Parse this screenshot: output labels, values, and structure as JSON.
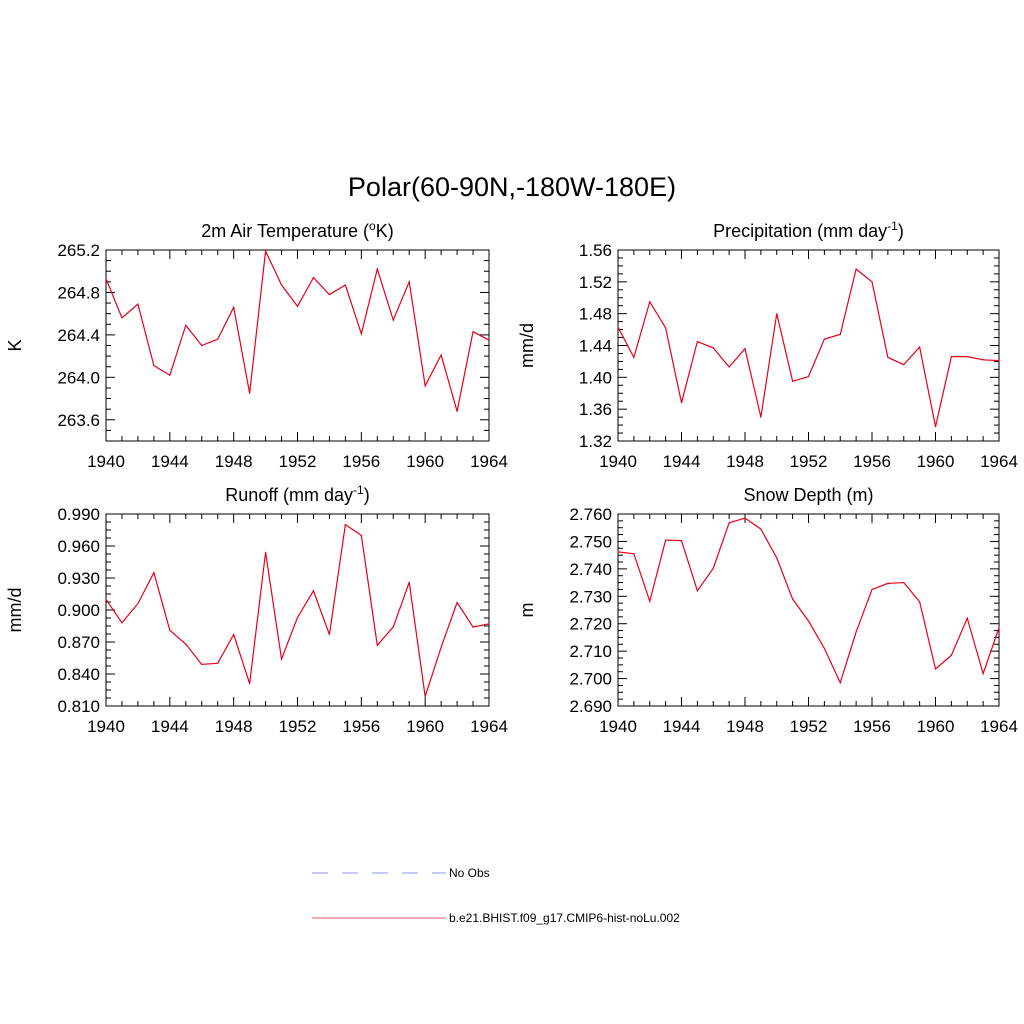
{
  "figure": {
    "title": "Polar(60-90N,-180W-180E)"
  },
  "chart_data": [
    {
      "type": "line",
      "title": "2m Air Temperature (",
      "title_sup": "o",
      "title_tail": "K)",
      "ylabel": "K",
      "xlim": [
        1940,
        1964
      ],
      "ylim": [
        263.4,
        265.2
      ],
      "xticks": [
        1940,
        1944,
        1948,
        1952,
        1956,
        1960,
        1964
      ],
      "yticks": [
        "263.6",
        "264.0",
        "264.4",
        "264.8",
        "265.2"
      ],
      "color": "#e8001a",
      "x": [
        1940,
        1941,
        1942,
        1943,
        1944,
        1945,
        1946,
        1947,
        1948,
        1949,
        1950,
        1951,
        1952,
        1953,
        1954,
        1955,
        1956,
        1957,
        1958,
        1959,
        1960,
        1961,
        1962,
        1963,
        1964
      ],
      "y": [
        264.93,
        264.56,
        264.69,
        264.11,
        264.02,
        264.49,
        264.3,
        264.36,
        264.66,
        263.85,
        265.19,
        264.87,
        264.67,
        264.94,
        264.78,
        264.87,
        264.41,
        265.02,
        264.54,
        264.9,
        263.92,
        264.21,
        263.68,
        264.43,
        264.35
      ]
    },
    {
      "type": "line",
      "title": "Precipitation (mm day",
      "title_sup": "-1",
      "title_tail": ")",
      "ylabel": "mm/d",
      "xlim": [
        1940,
        1964
      ],
      "ylim": [
        1.32,
        1.56
      ],
      "xticks": [
        1940,
        1944,
        1948,
        1952,
        1956,
        1960,
        1964
      ],
      "yticks": [
        "1.32",
        "1.36",
        "1.40",
        "1.44",
        "1.48",
        "1.52",
        "1.56"
      ],
      "color": "#e8001a",
      "x": [
        1940,
        1941,
        1942,
        1943,
        1944,
        1945,
        1946,
        1947,
        1948,
        1949,
        1950,
        1951,
        1952,
        1953,
        1954,
        1955,
        1956,
        1957,
        1958,
        1959,
        1960,
        1961,
        1962,
        1963,
        1964
      ],
      "y": [
        1.463,
        1.425,
        1.495,
        1.462,
        1.368,
        1.445,
        1.437,
        1.413,
        1.436,
        1.35,
        1.48,
        1.395,
        1.401,
        1.448,
        1.454,
        1.536,
        1.52,
        1.425,
        1.416,
        1.438,
        1.338,
        1.426,
        1.426,
        1.422,
        1.421
      ]
    },
    {
      "type": "line",
      "title": "Runoff (mm day",
      "title_sup": "-1",
      "title_tail": ")",
      "ylabel": "mm/d",
      "xlim": [
        1940,
        1964
      ],
      "ylim": [
        0.81,
        0.99
      ],
      "xticks": [
        1940,
        1944,
        1948,
        1952,
        1956,
        1960,
        1964
      ],
      "yticks": [
        "0.810",
        "0.840",
        "0.870",
        "0.900",
        "0.930",
        "0.960",
        "0.990"
      ],
      "color": "#e8001a",
      "x": [
        1940,
        1941,
        1942,
        1943,
        1944,
        1945,
        1946,
        1947,
        1948,
        1949,
        1950,
        1951,
        1952,
        1953,
        1954,
        1955,
        1956,
        1957,
        1958,
        1959,
        1960,
        1961,
        1962,
        1963,
        1964
      ],
      "y": [
        0.91,
        0.888,
        0.906,
        0.935,
        0.881,
        0.868,
        0.849,
        0.85,
        0.877,
        0.831,
        0.954,
        0.854,
        0.893,
        0.918,
        0.877,
        0.98,
        0.97,
        0.867,
        0.884,
        0.926,
        0.819,
        0.865,
        0.907,
        0.884,
        0.887
      ]
    },
    {
      "type": "line",
      "title": "Snow Depth (m)",
      "title_sup": "",
      "title_tail": "",
      "ylabel": "m",
      "xlim": [
        1940,
        1964
      ],
      "ylim": [
        2.69,
        2.76
      ],
      "xticks": [
        1940,
        1944,
        1948,
        1952,
        1956,
        1960,
        1964
      ],
      "yticks": [
        "2.690",
        "2.700",
        "2.710",
        "2.720",
        "2.730",
        "2.740",
        "2.750",
        "2.760"
      ],
      "color": "#e8001a",
      "x": [
        1940,
        1941,
        1942,
        1943,
        1944,
        1945,
        1946,
        1947,
        1948,
        1949,
        1950,
        1951,
        1952,
        1953,
        1954,
        1955,
        1956,
        1957,
        1958,
        1959,
        1960,
        1961,
        1962,
        1963,
        1964
      ],
      "y": [
        2.7462,
        2.7455,
        2.7282,
        2.7505,
        2.7503,
        2.732,
        2.7402,
        2.7568,
        2.7585,
        2.7545,
        2.744,
        2.729,
        2.721,
        2.711,
        2.6985,
        2.717,
        2.7325,
        2.7347,
        2.735,
        2.728,
        2.7035,
        2.7085,
        2.722,
        2.7018,
        2.7185
      ]
    }
  ],
  "legend": {
    "placement": "bottom-center",
    "items": [
      {
        "label": "No Obs",
        "style": "dashed",
        "color": "#a9a9f0"
      },
      {
        "label": "b.e21.BHIST.f09_g17.CMIP6-hist-noLu.002",
        "style": "solid",
        "color": "#f07a86"
      }
    ]
  }
}
